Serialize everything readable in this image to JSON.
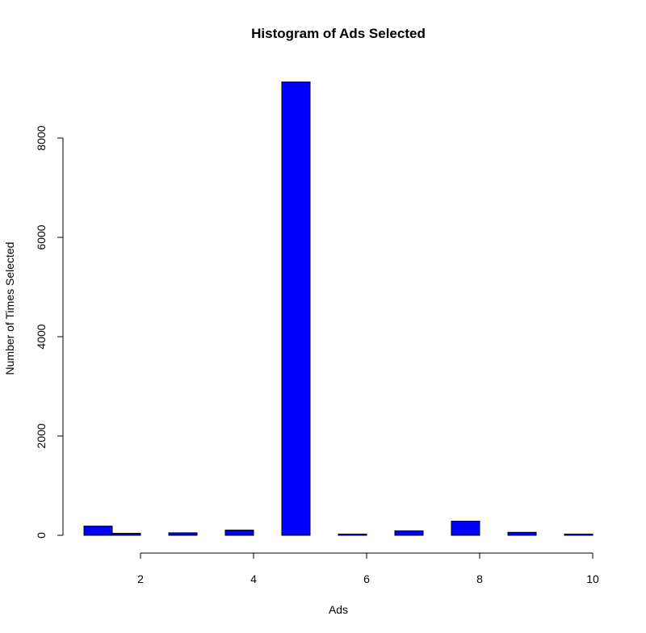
{
  "chart_data": {
    "type": "bar",
    "title": "Histogram of Ads Selected",
    "xlabel": "Ads",
    "ylabel": "Number of Times Selected",
    "bins": [
      {
        "x0": 1.0,
        "x1": 1.5,
        "value": 185
      },
      {
        "x0": 1.5,
        "x1": 2.0,
        "value": 40
      },
      {
        "x0": 2.5,
        "x1": 3.0,
        "value": 50
      },
      {
        "x0": 3.5,
        "x1": 4.0,
        "value": 105
      },
      {
        "x0": 4.5,
        "x1": 5.0,
        "value": 9130
      },
      {
        "x0": 5.5,
        "x1": 6.0,
        "value": 25
      },
      {
        "x0": 6.5,
        "x1": 7.0,
        "value": 90
      },
      {
        "x0": 7.5,
        "x1": 8.0,
        "value": 285
      },
      {
        "x0": 8.5,
        "x1": 9.0,
        "value": 60
      },
      {
        "x0": 9.5,
        "x1": 10.0,
        "value": 25
      }
    ],
    "xlim": [
      1,
      10
    ],
    "ylim": [
      0,
      9130
    ],
    "x_ticks": [
      2,
      4,
      6,
      8,
      10
    ],
    "y_ticks": [
      0,
      2000,
      4000,
      6000,
      8000
    ],
    "bar_fill": "#0000ff",
    "bar_stroke": "#000000",
    "grid": false,
    "legend": "none"
  }
}
